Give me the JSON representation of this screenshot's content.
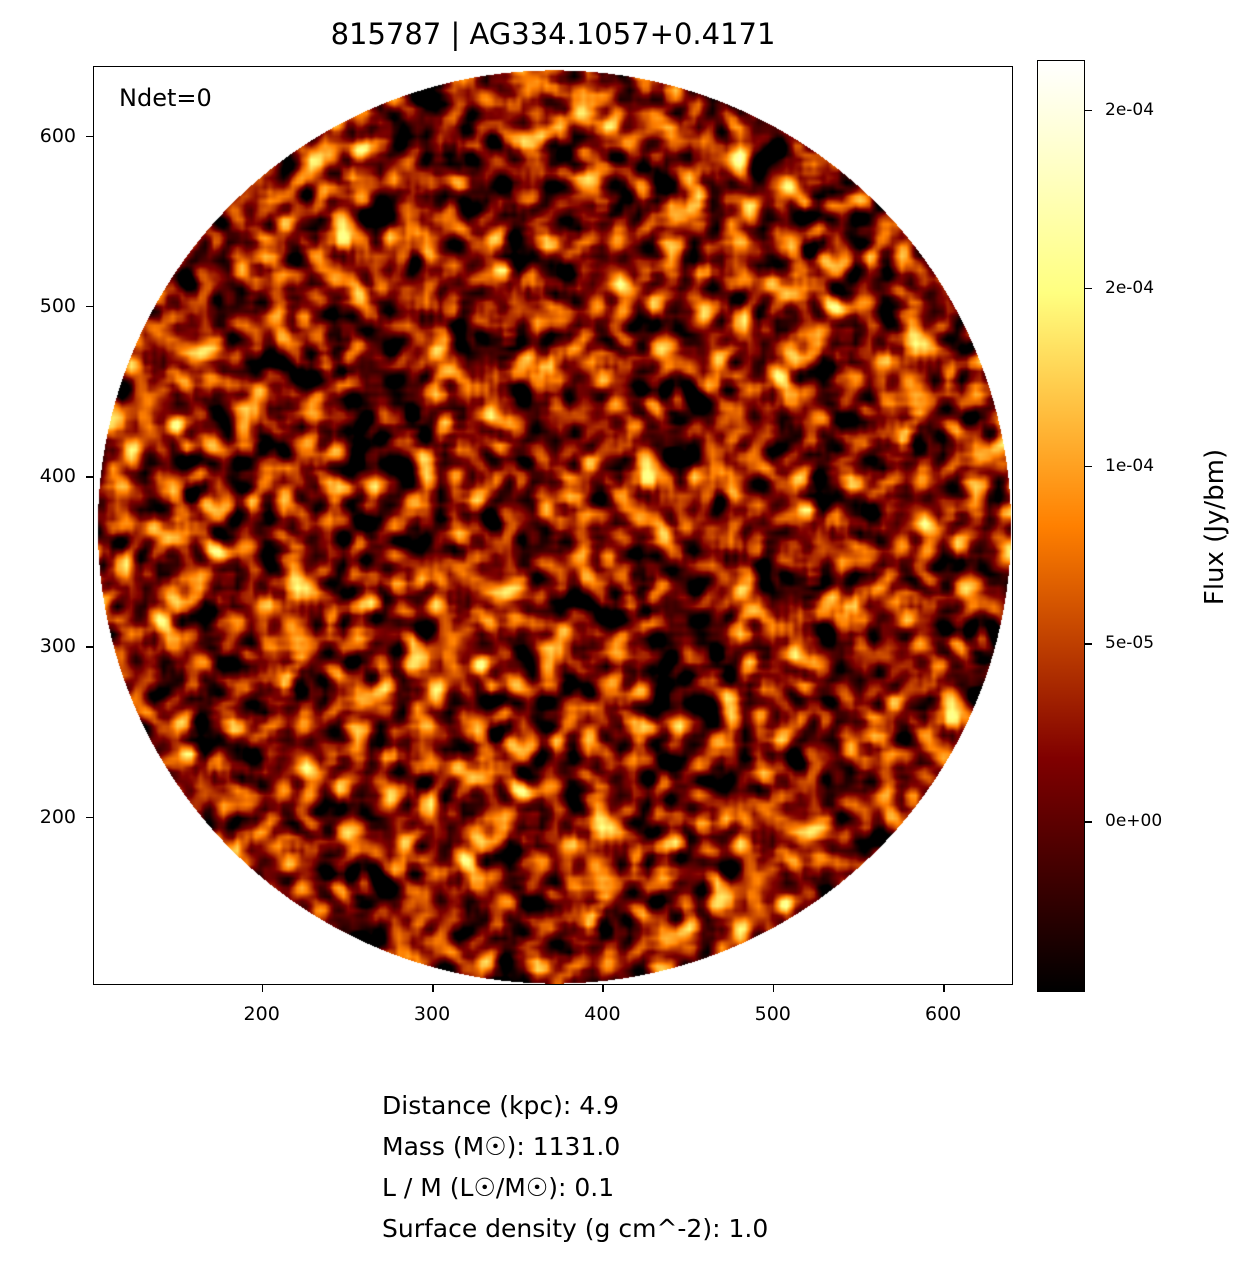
{
  "chart_data": {
    "type": "heatmap",
    "title": "815787 | AG334.1057+0.4171",
    "annotation": "Ndet=0",
    "xlim": [
      101,
      641
    ],
    "ylim": [
      101,
      641
    ],
    "xticks": [
      200,
      300,
      400,
      500,
      600
    ],
    "yticks": [
      200,
      300,
      400,
      500,
      600
    ],
    "image": {
      "shape": "circle",
      "center": [
        371,
        371
      ],
      "radius": 268,
      "content": "noise"
    },
    "colormap": "afmhot",
    "colorbar": {
      "label": "Flux (Jy/bm)",
      "range": [
        -4.8e-05,
        0.000214
      ],
      "ticks": [
        {
          "value": 0.0002,
          "label": "2e-04"
        },
        {
          "value": 0.00015,
          "label": "2e-04"
        },
        {
          "value": 0.0001,
          "label": "1e-04"
        },
        {
          "value": 5e-05,
          "label": "5e-05"
        },
        {
          "value": 0,
          "label": "0e+00"
        }
      ]
    },
    "grid": false
  },
  "info": {
    "distance": "Distance (kpc): 4.9",
    "mass": "Mass (M☉): 1131.0",
    "lm": "L / M (L☉/M☉): 0.1",
    "surface_density": "Surface density (g cm^-2): 1.0"
  }
}
